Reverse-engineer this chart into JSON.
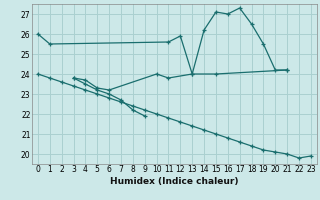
{
  "xlabel": "Humidex (Indice chaleur)",
  "ylabel": "",
  "bg_color": "#cce8e8",
  "grid_color": "#aad0d0",
  "line_color": "#1a6e6e",
  "xlim": [
    -0.5,
    23.5
  ],
  "ylim": [
    19.5,
    27.5
  ],
  "yticks": [
    20,
    21,
    22,
    23,
    24,
    25,
    26,
    27
  ],
  "xticks": [
    0,
    1,
    2,
    3,
    4,
    5,
    6,
    7,
    8,
    9,
    10,
    11,
    12,
    13,
    14,
    15,
    16,
    17,
    18,
    19,
    20,
    21,
    22,
    23
  ],
  "series": [
    {
      "x": [
        0,
        1,
        11,
        12,
        13,
        14,
        15,
        16,
        17,
        18,
        19,
        20,
        21
      ],
      "y": [
        26.0,
        25.5,
        25.6,
        25.9,
        24.0,
        26.2,
        27.1,
        27.0,
        27.3,
        26.5,
        25.5,
        24.2,
        24.2
      ]
    },
    {
      "x": [
        3,
        4,
        5,
        6,
        10,
        11,
        13,
        15,
        21
      ],
      "y": [
        23.8,
        23.7,
        23.3,
        23.2,
        24.0,
        23.8,
        24.0,
        24.0,
        24.2
      ]
    },
    {
      "x": [
        3,
        4,
        5,
        6,
        7,
        8,
        9
      ],
      "y": [
        23.8,
        23.5,
        23.2,
        23.0,
        22.7,
        22.2,
        21.9
      ]
    },
    {
      "x": [
        0,
        1,
        2,
        3,
        4,
        5,
        6,
        7,
        8,
        9,
        10,
        11,
        12,
        13,
        14,
        15,
        16,
        17,
        18,
        19,
        20,
        21,
        22,
        23
      ],
      "y": [
        24.0,
        23.8,
        23.6,
        23.4,
        23.2,
        23.0,
        22.8,
        22.6,
        22.4,
        22.2,
        22.0,
        21.8,
        21.6,
        21.4,
        21.2,
        21.0,
        20.8,
        20.6,
        20.4,
        20.2,
        20.1,
        20.0,
        19.8,
        19.9
      ]
    }
  ]
}
